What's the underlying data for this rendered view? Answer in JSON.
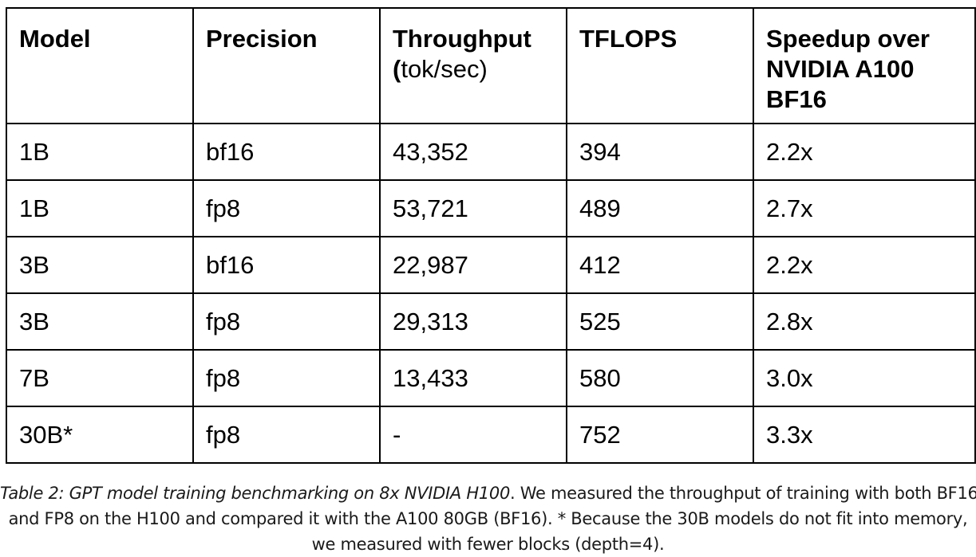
{
  "table": {
    "headers": [
      {
        "main": "Model",
        "sub": ""
      },
      {
        "main": "Precision",
        "sub": ""
      },
      {
        "main": "Throughput",
        "sub_paren": "(",
        "sub": "tok/sec)"
      },
      {
        "main": "TFLOPS",
        "sub": ""
      },
      {
        "main": "Speedup over NVIDIA A100 BF16",
        "sub": ""
      }
    ],
    "rows": [
      [
        "1B",
        "bf16",
        "43,352",
        "394",
        "2.2x"
      ],
      [
        "1B",
        "fp8",
        "53,721",
        "489",
        "2.7x"
      ],
      [
        "3B",
        "bf16",
        "22,987",
        "412",
        "2.2x"
      ],
      [
        "3B",
        "fp8",
        "29,313",
        "525",
        "2.8x"
      ],
      [
        "7B",
        "fp8",
        "13,433",
        "580",
        "3.0x"
      ],
      [
        "30B*",
        "fp8",
        "-",
        "752",
        "3.3x"
      ]
    ]
  },
  "caption": {
    "title": "Table 2: GPT model training benchmarking on 8x NVIDIA H100",
    "line1_rest": ". We measured the throughput of training with both BF16",
    "line2": "and FP8 on the H100 and compared it with the A100 80GB (BF16). * Because the 30B models do not fit into memory,",
    "line3": "we measured with fewer blocks (depth=4)."
  }
}
